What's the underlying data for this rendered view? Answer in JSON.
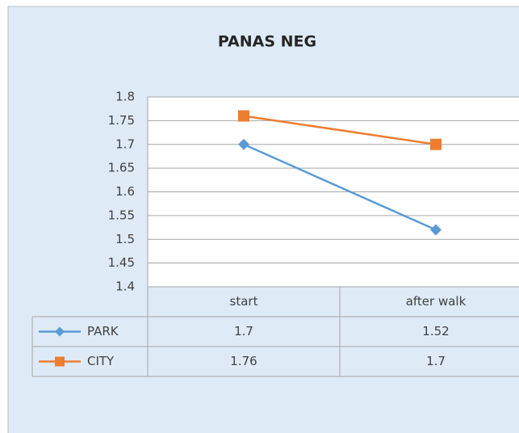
{
  "chart_data": {
    "type": "line",
    "title": "PANAS NEG",
    "categories": [
      "start",
      "after walk"
    ],
    "series": [
      {
        "name": "PARK",
        "color": "#5b9bd5",
        "marker": "diamond",
        "values": [
          1.7,
          1.52
        ]
      },
      {
        "name": "CITY",
        "color": "#ed7d31",
        "marker": "square",
        "values": [
          1.76,
          1.7
        ]
      }
    ],
    "ylim": [
      1.4,
      1.8
    ],
    "yticks": [
      1.4,
      1.45,
      1.5,
      1.55,
      1.6,
      1.65,
      1.7,
      1.75,
      1.8
    ],
    "grid": true,
    "data_table": true
  }
}
